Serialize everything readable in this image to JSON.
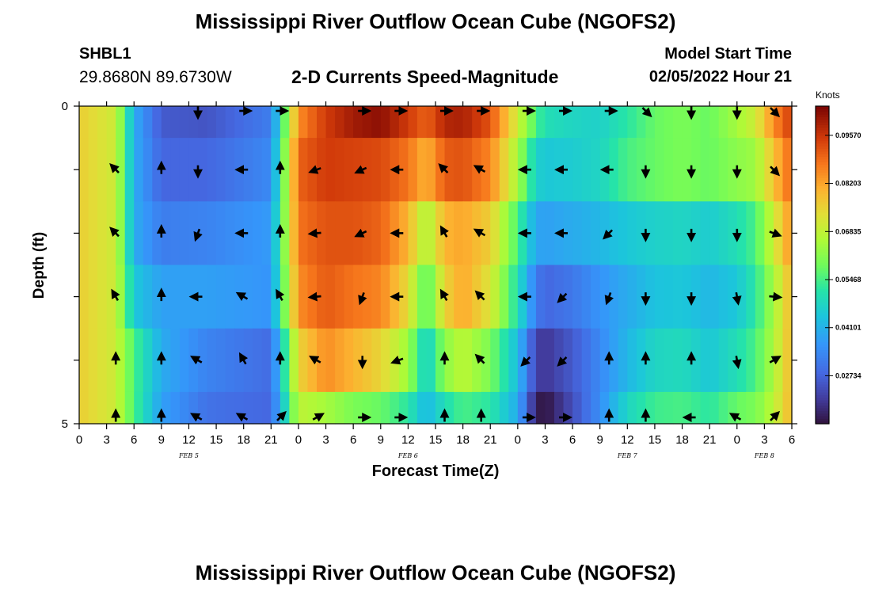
{
  "header": {
    "title": "Mississippi River Outflow Ocean Cube (NGOFS2)",
    "station_id": "SHBL1",
    "station_coords": "29.8680N  89.6730W",
    "subtitle": "2-D Currents Speed-Magnitude",
    "model_start_label": "Model Start Time",
    "model_start_value": "02/05/2022 Hour 21"
  },
  "footer": {
    "title": "Mississippi River Outflow Ocean Cube (NGOFS2)"
  },
  "chart_data": {
    "type": "heatmap",
    "title": "2-D Currents Speed-Magnitude",
    "xlabel": "Forecast Time(Z)",
    "ylabel": "Depth (ft)",
    "colorbar_label": "Knots",
    "colorbar_ticks": [
      "0.02734",
      "0.04101",
      "0.05468",
      "0.06835",
      "0.08203",
      "0.09570"
    ],
    "colorbar_range": [
      0.0137,
      0.104
    ],
    "ylim": [
      0,
      5
    ],
    "y_ticks": [
      "0",
      "5"
    ],
    "x_range_hours": [
      0,
      78
    ],
    "x_tick_labels": [
      "0",
      "3",
      "6",
      "9",
      "12",
      "15",
      "18",
      "21",
      "0",
      "3",
      "6",
      "9",
      "12",
      "15",
      "18",
      "21",
      "0",
      "3",
      "6",
      "9",
      "12",
      "15",
      "18",
      "21",
      "0",
      "3",
      "6"
    ],
    "date_labels": [
      {
        "text": "FEB 5",
        "hour": 12
      },
      {
        "text": "FEB 6",
        "hour": 36
      },
      {
        "text": "FEB 7",
        "hour": 60
      },
      {
        "text": "FEB 8",
        "hour": 75
      }
    ],
    "grid": false,
    "rows_depth": [
      0,
      1,
      2,
      3,
      4,
      5
    ],
    "speed_keyframes_hour": [
      0,
      4,
      6,
      9,
      14,
      21,
      24,
      27,
      30,
      33,
      36,
      38,
      40,
      42,
      45,
      48,
      50,
      51,
      54,
      57,
      60,
      63,
      66,
      69,
      72,
      74,
      76,
      78
    ],
    "speed_rows": [
      [
        0.076,
        0.07,
        0.04,
        0.026,
        0.025,
        0.032,
        0.085,
        0.095,
        0.1,
        0.102,
        0.095,
        0.09,
        0.098,
        0.099,
        0.092,
        0.07,
        0.055,
        0.05,
        0.048,
        0.047,
        0.052,
        0.058,
        0.06,
        0.058,
        0.065,
        0.07,
        0.085,
        0.095
      ],
      [
        0.076,
        0.07,
        0.04,
        0.028,
        0.028,
        0.034,
        0.09,
        0.095,
        0.094,
        0.093,
        0.088,
        0.08,
        0.091,
        0.092,
        0.086,
        0.065,
        0.047,
        0.045,
        0.046,
        0.048,
        0.055,
        0.058,
        0.06,
        0.058,
        0.062,
        0.064,
        0.078,
        0.09
      ],
      [
        0.076,
        0.07,
        0.04,
        0.032,
        0.033,
        0.037,
        0.088,
        0.092,
        0.092,
        0.09,
        0.08,
        0.065,
        0.08,
        0.082,
        0.076,
        0.055,
        0.039,
        0.038,
        0.04,
        0.042,
        0.045,
        0.047,
        0.048,
        0.046,
        0.05,
        0.055,
        0.07,
        0.085
      ],
      [
        0.076,
        0.07,
        0.045,
        0.038,
        0.038,
        0.036,
        0.085,
        0.091,
        0.088,
        0.086,
        0.074,
        0.055,
        0.075,
        0.082,
        0.072,
        0.05,
        0.032,
        0.028,
        0.031,
        0.036,
        0.04,
        0.044,
        0.045,
        0.042,
        0.045,
        0.052,
        0.065,
        0.08
      ],
      [
        0.076,
        0.07,
        0.055,
        0.04,
        0.033,
        0.029,
        0.075,
        0.085,
        0.08,
        0.075,
        0.064,
        0.046,
        0.062,
        0.068,
        0.06,
        0.043,
        0.022,
        0.02,
        0.026,
        0.034,
        0.042,
        0.048,
        0.049,
        0.045,
        0.05,
        0.055,
        0.066,
        0.08
      ],
      [
        0.076,
        0.07,
        0.055,
        0.038,
        0.03,
        0.028,
        0.068,
        0.065,
        0.06,
        0.058,
        0.052,
        0.042,
        0.05,
        0.055,
        0.052,
        0.04,
        0.016,
        0.014,
        0.024,
        0.035,
        0.048,
        0.054,
        0.055,
        0.052,
        0.058,
        0.06,
        0.068,
        0.08
      ]
    ],
    "arrow_hours": [
      4,
      9,
      13,
      18,
      22,
      26,
      31,
      35,
      40,
      44,
      49,
      53,
      58,
      62,
      67,
      72,
      76
    ],
    "arrow_dirs_deg": [
      [
        null,
        null,
        180,
        90,
        90,
        null,
        90,
        90,
        90,
        90,
        90,
        90,
        90,
        135,
        180,
        180,
        135
      ],
      [
        315,
        0,
        180,
        270,
        0,
        250,
        245,
        270,
        315,
        300,
        270,
        270,
        270,
        180,
        180,
        180,
        135
      ],
      [
        315,
        0,
        200,
        270,
        0,
        265,
        245,
        270,
        330,
        300,
        270,
        270,
        225,
        180,
        180,
        180,
        110
      ],
      [
        330,
        0,
        270,
        300,
        330,
        265,
        200,
        270,
        330,
        315,
        270,
        225,
        200,
        180,
        180,
        170,
        95
      ],
      [
        0,
        0,
        300,
        330,
        0,
        300,
        180,
        250,
        0,
        315,
        225,
        225,
        0,
        0,
        360,
        170,
        60
      ],
      [
        0,
        0,
        300,
        300,
        45,
        60,
        90,
        90,
        0,
        0,
        90,
        90,
        0,
        0,
        270,
        300,
        45
      ]
    ]
  }
}
